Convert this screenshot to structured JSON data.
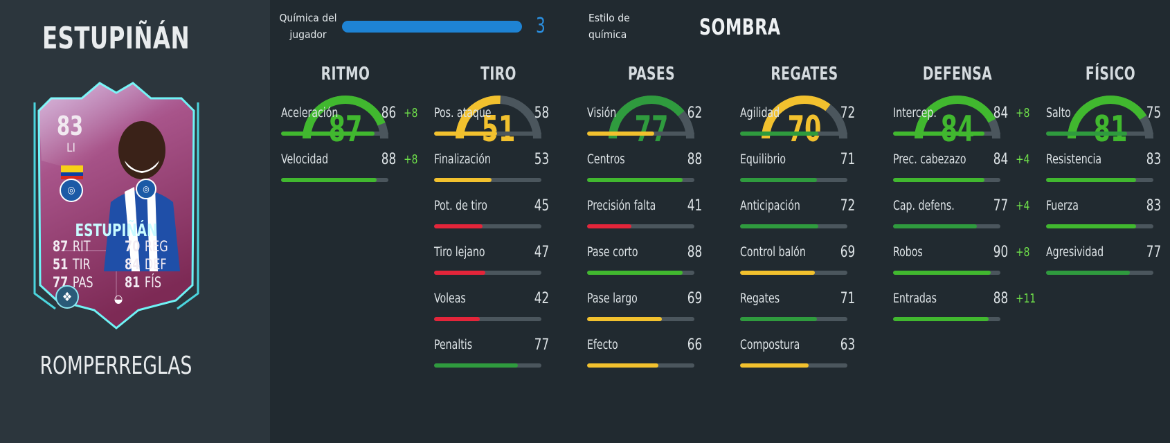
{
  "player": {
    "name": "ESTUPIÑÁN",
    "version": "ROMPERREGLAS",
    "card": {
      "rating": "83",
      "position": "LI",
      "card_name": "ESTUPIÑÁN",
      "stats_left": [
        {
          "value": "87",
          "label": "RIT"
        },
        {
          "value": "51",
          "label": "TIR"
        },
        {
          "value": "77",
          "label": "PAS"
        }
      ],
      "stats_right": [
        {
          "value": "70",
          "label": "REG"
        },
        {
          "value": "84",
          "label": "DEF"
        },
        {
          "value": "81",
          "label": "FÍS"
        }
      ]
    }
  },
  "chemistry": {
    "label_line1": "Química del",
    "label_line2": "jugador",
    "value": "3",
    "style_label_line1": "Estilo de",
    "style_label_line2": "química",
    "style_value": "SOMBRA"
  },
  "colors": {
    "green": "#41b82f",
    "dark_green": "#2f9b3e",
    "yellow": "#f2c12e",
    "red": "#e4253a",
    "bonus": "#6fe14a",
    "chem_blue": "#1e83d4"
  },
  "categories": [
    {
      "title": "RITMO",
      "value": 87,
      "color": "#41b82f",
      "stats": [
        {
          "name": "Aceleración",
          "value": 86,
          "bonus": "+8"
        },
        {
          "name": "Velocidad",
          "value": 88,
          "bonus": "+8"
        }
      ]
    },
    {
      "title": "TIRO",
      "value": 51,
      "color": "#f2c12e",
      "stats": [
        {
          "name": "Pos. ataque",
          "value": 58,
          "bonus": ""
        },
        {
          "name": "Finalización",
          "value": 53,
          "bonus": ""
        },
        {
          "name": "Pot. de tiro",
          "value": 45,
          "bonus": ""
        },
        {
          "name": "Tiro lejano",
          "value": 47,
          "bonus": ""
        },
        {
          "name": "Voleas",
          "value": 42,
          "bonus": ""
        },
        {
          "name": "Penaltis",
          "value": 77,
          "bonus": ""
        }
      ]
    },
    {
      "title": "PASES",
      "value": 77,
      "color": "#2f9b3e",
      "stats": [
        {
          "name": "Visión",
          "value": 62,
          "bonus": ""
        },
        {
          "name": "Centros",
          "value": 88,
          "bonus": ""
        },
        {
          "name": "Precisión falta",
          "value": 41,
          "bonus": ""
        },
        {
          "name": "Pase corto",
          "value": 88,
          "bonus": ""
        },
        {
          "name": "Pase largo",
          "value": 69,
          "bonus": ""
        },
        {
          "name": "Efecto",
          "value": 66,
          "bonus": ""
        }
      ]
    },
    {
      "title": "REGATES",
      "value": 70,
      "color": "#f2c12e",
      "stats": [
        {
          "name": "Agilidad",
          "value": 72,
          "bonus": ""
        },
        {
          "name": "Equilibrio",
          "value": 71,
          "bonus": ""
        },
        {
          "name": "Anticipación",
          "value": 72,
          "bonus": ""
        },
        {
          "name": "Control balón",
          "value": 69,
          "bonus": ""
        },
        {
          "name": "Regates",
          "value": 71,
          "bonus": ""
        },
        {
          "name": "Compostura",
          "value": 63,
          "bonus": ""
        }
      ]
    },
    {
      "title": "DEFENSA",
      "value": 84,
      "color": "#41b82f",
      "stats": [
        {
          "name": "Intercep.",
          "value": 84,
          "bonus": "+8"
        },
        {
          "name": "Prec. cabezazo",
          "value": 84,
          "bonus": "+4"
        },
        {
          "name": "Cap. defens.",
          "value": 77,
          "bonus": "+4"
        },
        {
          "name": "Robos",
          "value": 90,
          "bonus": "+8"
        },
        {
          "name": "Entradas",
          "value": 88,
          "bonus": "+11"
        }
      ]
    },
    {
      "title": "FÍSICO",
      "value": 81,
      "color": "#41b82f",
      "stats": [
        {
          "name": "Salto",
          "value": 75,
          "bonus": ""
        },
        {
          "name": "Resistencia",
          "value": 83,
          "bonus": ""
        },
        {
          "name": "Fuerza",
          "value": 83,
          "bonus": ""
        },
        {
          "name": "Agresividad",
          "value": 77,
          "bonus": ""
        }
      ]
    }
  ]
}
